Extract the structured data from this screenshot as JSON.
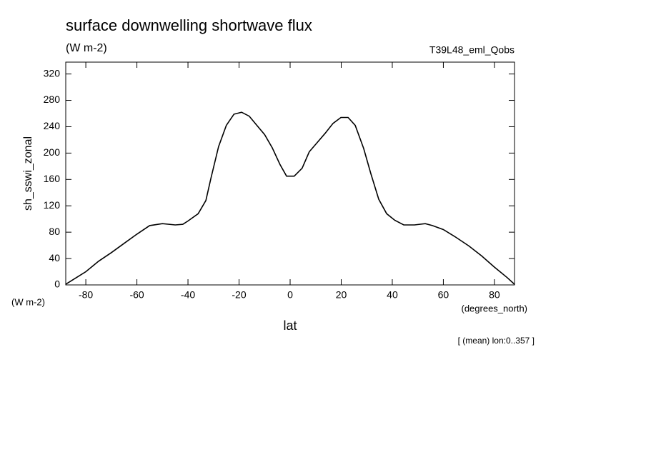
{
  "chart_data": {
    "type": "line",
    "title": "surface downwelling shortwave flux",
    "subtitle": "(W m-2)",
    "header_right": "T39L48_eml_Qobs",
    "y_label": "sh_sswi_zonal",
    "y_units": "(W m-2)",
    "x_label": "lat",
    "x_units": "(degrees_north)",
    "footnote": "[ (mean) lon:0..357 ]",
    "xlim": [
      -87.86,
      87.86
    ],
    "ylim": [
      0,
      338
    ],
    "xticks": [
      -80,
      -60,
      -40,
      -20,
      0,
      20,
      40,
      60,
      80
    ],
    "yticks": [
      0,
      40,
      80,
      120,
      160,
      200,
      240,
      280,
      320
    ],
    "grid": false,
    "series": [
      {
        "color": "#000000",
        "x": [
          -87.86,
          -80,
          -75,
          -70,
          -65,
          -60,
          -55,
          -50,
          -45,
          -42,
          -40,
          -36,
          -33,
          -31,
          -28,
          -25,
          -22,
          -19,
          -16,
          -13,
          -10,
          -7,
          -4,
          -1.4,
          1.6,
          4.7,
          7.5,
          10.6,
          13.7,
          16.8,
          19.9,
          22.7,
          25.5,
          28.8,
          31.6,
          34.7,
          37.8,
          41,
          44.5,
          48.7,
          52.9,
          55.7,
          60,
          65,
          70,
          75,
          80,
          85,
          87.86
        ],
        "values": [
          1,
          20,
          36,
          49,
          63,
          77,
          90,
          93,
          91,
          92,
          97,
          108,
          128,
          162,
          210,
          242,
          259,
          262,
          256,
          242,
          228,
          208,
          183,
          165,
          165,
          177,
          202,
          216,
          230,
          245,
          254,
          254,
          242,
          207,
          169,
          130,
          108,
          98,
          91,
          91,
          93,
          90,
          84,
          72,
          59,
          44,
          27,
          11,
          1
        ]
      }
    ]
  }
}
